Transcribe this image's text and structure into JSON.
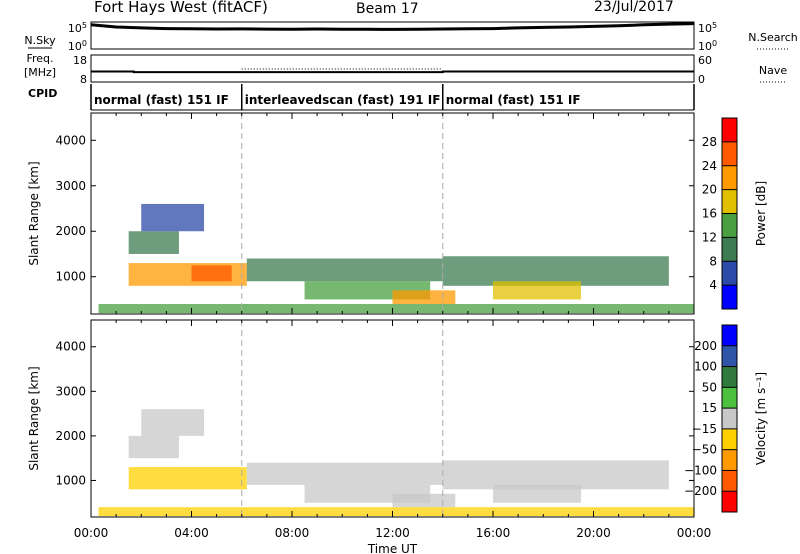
{
  "header": {
    "title": "Fort Hays West (fitACF)",
    "beam": "Beam 17",
    "date": "23/Jul/2017"
  },
  "colors": {
    "power": [
      "#0000ff",
      "#2c4aa8",
      "#3c7c50",
      "#4aa040",
      "#e0c000",
      "#ff9a00",
      "#ff5a00",
      "#ff0000"
    ],
    "velocity": [
      "#ff0000",
      "#ff5a00",
      "#ff9a00",
      "#ffd000",
      "#c8c8c8",
      "#4ec040",
      "#2f7a3c",
      "#2e55a8",
      "#0000ff"
    ],
    "noise_trace": "#000000",
    "gap_line": "#aaaaaa"
  },
  "chart_data": [
    {
      "type": "line",
      "panel": "noise",
      "left_label": "N.Sky",
      "right_label": "N.Search",
      "left_ticks": [
        "10^5",
        "10^0"
      ],
      "right_ticks": [
        "10^5",
        "10^0"
      ],
      "series": [
        {
          "name": "N.Sky",
          "values": [
            30000,
            12000,
            8000,
            6000,
            5500,
            5000,
            5200,
            4800,
            4500,
            5000,
            4600,
            4400,
            4200,
            4500,
            5000,
            5500,
            6000,
            8000,
            10000,
            12000,
            15000,
            20000,
            30000,
            40000,
            50000
          ]
        }
      ]
    },
    {
      "type": "line",
      "panel": "frequency",
      "left_label_1": "Freq.",
      "left_label_2": "[MHz]",
      "right_label": "Nave",
      "left_ticks": [
        "18",
        "8"
      ],
      "right_ticks": [
        "60",
        "0"
      ],
      "series": [
        {
          "name": "Freq.",
          "x": [
            0,
            1.7,
            1.7,
            14,
            14,
            24
          ],
          "values": [
            10.4,
            10.4,
            10.2,
            10.2,
            10.4,
            10.4
          ]
        }
      ]
    },
    {
      "type": "table",
      "panel": "cpid",
      "label": "CPID",
      "segments": [
        {
          "start": 0,
          "end": 6,
          "label": "normal (fast) 151 IF"
        },
        {
          "start": 6,
          "end": 14,
          "label": "interleavedscan (fast) 191 IF"
        },
        {
          "start": 14,
          "end": 24,
          "label": "normal (fast) 151 IF"
        }
      ]
    },
    {
      "type": "heatmap",
      "panel": "power",
      "ylabel": "Slant Range [km]",
      "yticks": [
        1000,
        2000,
        3000,
        4000
      ],
      "ylim": [
        180,
        4600
      ],
      "xlim": [
        0,
        24
      ],
      "colorbar_label": "Power [dB]",
      "colorbar_ticks": [
        4,
        8,
        12,
        16,
        20,
        24,
        28
      ],
      "colorbar_range": [
        0,
        32
      ],
      "regions": [
        {
          "x": [
            1.5,
            6.2
          ],
          "y": [
            800,
            1300
          ],
          "value": 21
        },
        {
          "x": [
            4.0,
            5.6
          ],
          "y": [
            900,
            1250
          ],
          "value": 27
        },
        {
          "x": [
            1.5,
            3.5
          ],
          "y": [
            1500,
            2000
          ],
          "value": 9
        },
        {
          "x": [
            2.0,
            4.5
          ],
          "y": [
            2000,
            2600
          ],
          "value": 7
        },
        {
          "x": [
            6.2,
            14.0
          ],
          "y": [
            900,
            1400
          ],
          "value": 8
        },
        {
          "x": [
            8.5,
            13.5
          ],
          "y": [
            500,
            900
          ],
          "value": 12
        },
        {
          "x": [
            12.0,
            14.5
          ],
          "y": [
            400,
            700
          ],
          "value": 22
        },
        {
          "x": [
            14.0,
            23.0
          ],
          "y": [
            800,
            1450
          ],
          "value": 10
        },
        {
          "x": [
            16.0,
            19.5
          ],
          "y": [
            500,
            900
          ],
          "value": 18
        },
        {
          "x": [
            0.3,
            24.0
          ],
          "y": [
            200,
            400
          ],
          "value": 15
        }
      ]
    },
    {
      "type": "heatmap",
      "panel": "velocity",
      "ylabel": "Slant Range [km]",
      "yticks": [
        1000,
        2000,
        3000,
        4000
      ],
      "ylim": [
        180,
        4600
      ],
      "xlim": [
        0,
        24
      ],
      "colorbar_label": "Velocity [m s⁻¹]",
      "colorbar_ticks": [
        -200,
        -100,
        -50,
        -15,
        15,
        50,
        100,
        200
      ],
      "colorbar_ticklabels": [
        "−200",
        "−100",
        "−50",
        "−15",
        "15",
        "50",
        "100",
        "200"
      ],
      "colorbar_range": [
        -250,
        250
      ],
      "regions": [
        {
          "x": [
            1.5,
            6.2
          ],
          "y": [
            800,
            1300
          ],
          "value": -60
        },
        {
          "x": [
            1.5,
            3.5
          ],
          "y": [
            1500,
            2000
          ],
          "value": -10
        },
        {
          "x": [
            2.0,
            4.5
          ],
          "y": [
            2000,
            2600
          ],
          "value": 0
        },
        {
          "x": [
            6.2,
            14.0
          ],
          "y": [
            900,
            1400
          ],
          "value": 5
        },
        {
          "x": [
            8.5,
            13.5
          ],
          "y": [
            500,
            900
          ],
          "value": 0
        },
        {
          "x": [
            12.0,
            14.5
          ],
          "y": [
            400,
            700
          ],
          "value": 0
        },
        {
          "x": [
            14.0,
            23.0
          ],
          "y": [
            800,
            1450
          ],
          "value": 0
        },
        {
          "x": [
            16.0,
            19.5
          ],
          "y": [
            500,
            900
          ],
          "value": 0
        },
        {
          "x": [
            0.3,
            24.0
          ],
          "y": [
            200,
            400
          ],
          "value": -40
        }
      ]
    }
  ],
  "time_axis": {
    "label": "Time UT",
    "ticks": [
      "00:00",
      "04:00",
      "08:00",
      "12:00",
      "16:00",
      "20:00",
      "00:00"
    ]
  }
}
